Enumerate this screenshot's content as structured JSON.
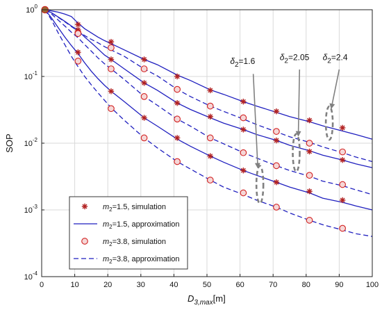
{
  "chart_data": {
    "type": "line",
    "ylabel": "SOP",
    "xlabel": {
      "base": "D",
      "sub": "3,max",
      "unit": "[m]"
    },
    "xlim": [
      0,
      100
    ],
    "ylim": [
      0.0001,
      1
    ],
    "yscale": "log",
    "grid": true,
    "x_ticks": [
      "0",
      "10",
      "20",
      "30",
      "40",
      "50",
      "60",
      "70",
      "80",
      "90",
      "100"
    ],
    "y_ticks": [
      {
        "base": "10",
        "exp": "-4",
        "value": 0.0001
      },
      {
        "base": "10",
        "exp": "-3",
        "value": 0.001
      },
      {
        "base": "10",
        "exp": "-2",
        "value": 0.01
      },
      {
        "base": "10",
        "exp": "-1",
        "value": 0.1
      },
      {
        "base": "10",
        "exp": "0",
        "value": 1
      }
    ],
    "legend_position": "bottom-left",
    "legend": [
      {
        "kind": "sim-m15",
        "prefix": "m",
        "sub": "2",
        "text": "=1.5, simulation"
      },
      {
        "kind": "approx-m15",
        "prefix": "m",
        "sub": "2",
        "text": "=1.5, approximation"
      },
      {
        "kind": "sim-m38",
        "prefix": "m",
        "sub": "2",
        "text": "=3.8, simulation"
      },
      {
        "kind": "approx-m38",
        "prefix": "m",
        "sub": "2",
        "text": "=3.8, approximation"
      }
    ],
    "annotations": [
      {
        "prefix": "δ",
        "sub": "2",
        "text": "=1.6"
      },
      {
        "prefix": "δ",
        "sub": "2",
        "text": "=2.05"
      },
      {
        "prefix": "δ",
        "sub": "2",
        "text": "=2.4"
      }
    ],
    "sim_x": [
      1,
      11,
      21,
      31,
      41,
      51,
      61,
      71,
      81,
      91
    ],
    "curve_x": [
      1,
      3,
      5,
      7,
      9,
      11,
      13,
      15,
      17,
      19,
      21,
      25,
      31,
      35,
      41,
      45,
      51,
      55,
      61,
      65,
      71,
      75,
      81,
      85,
      91,
      95,
      100
    ],
    "series": [
      {
        "group": "delta-2.4",
        "m2": "1.5",
        "sim": [
          1,
          0.6,
          0.33,
          0.18,
          0.1,
          0.062,
          0.042,
          0.03,
          0.022,
          0.017
        ],
        "approx": [
          1,
          0.96,
          0.92,
          0.86,
          0.79,
          0.63,
          0.52,
          0.45,
          0.39,
          0.345,
          0.31,
          0.25,
          0.18,
          0.15,
          0.105,
          0.087,
          0.063,
          0.054,
          0.042,
          0.036,
          0.029,
          0.025,
          0.021,
          0.0182,
          0.0152,
          0.0135,
          0.0115
        ]
      },
      {
        "group": "delta-2.4",
        "m2": "3.8",
        "sim": [
          1,
          0.45,
          0.27,
          0.13,
          0.064,
          0.036,
          0.024,
          0.015,
          0.01,
          0.0074
        ],
        "approx": [
          1,
          0.9,
          0.77,
          0.66,
          0.56,
          0.48,
          0.41,
          0.36,
          0.32,
          0.28,
          0.25,
          0.2,
          0.13,
          0.102,
          0.064,
          0.05,
          0.036,
          0.03,
          0.023,
          0.019,
          0.0148,
          0.0125,
          0.0103,
          0.0088,
          0.0072,
          0.0062,
          0.0053
        ]
      },
      {
        "group": "delta-2.05",
        "m2": "1.5",
        "sim": [
          1,
          0.5,
          0.18,
          0.08,
          0.04,
          0.025,
          0.016,
          0.011,
          0.0075,
          0.0056
        ],
        "approx": [
          1,
          0.9,
          0.78,
          0.67,
          0.57,
          0.49,
          0.39,
          0.32,
          0.26,
          0.21,
          0.18,
          0.13,
          0.08,
          0.062,
          0.04,
          0.032,
          0.024,
          0.02,
          0.016,
          0.0135,
          0.011,
          0.0093,
          0.0077,
          0.0066,
          0.0056,
          0.0049,
          0.0043
        ]
      },
      {
        "group": "delta-2.05",
        "m2": "3.8",
        "sim": [
          1,
          0.44,
          0.13,
          0.05,
          0.023,
          0.012,
          0.0072,
          0.0046,
          0.0033,
          0.0024
        ],
        "approx": [
          1,
          0.86,
          0.7,
          0.57,
          0.46,
          0.38,
          0.3,
          0.24,
          0.19,
          0.155,
          0.13,
          0.09,
          0.05,
          0.037,
          0.023,
          0.018,
          0.012,
          0.0098,
          0.0072,
          0.006,
          0.0046,
          0.0039,
          0.0032,
          0.0027,
          0.0023,
          0.002,
          0.0017
        ]
      },
      {
        "group": "delta-1.6",
        "m2": "1.5",
        "sim": [
          1,
          0.23,
          0.06,
          0.024,
          0.012,
          0.0064,
          0.0039,
          0.0026,
          0.0019,
          0.0014
        ],
        "approx": [
          1,
          0.75,
          0.54,
          0.39,
          0.29,
          0.22,
          0.16,
          0.12,
          0.093,
          0.074,
          0.06,
          0.042,
          0.024,
          0.018,
          0.0115,
          0.009,
          0.0064,
          0.0052,
          0.0039,
          0.0033,
          0.0026,
          0.0022,
          0.0018,
          0.0015,
          0.0013,
          0.00115,
          0.001
        ]
      },
      {
        "group": "delta-1.6",
        "m2": "3.8",
        "sim": [
          1,
          0.17,
          0.033,
          0.012,
          0.0053,
          0.0028,
          0.0018,
          0.0011,
          0.0007,
          0.00053
        ],
        "approx": [
          1,
          0.7,
          0.45,
          0.3,
          0.2,
          0.14,
          0.1,
          0.075,
          0.057,
          0.044,
          0.034,
          0.022,
          0.012,
          0.0085,
          0.0053,
          0.0041,
          0.0028,
          0.0022,
          0.0017,
          0.0014,
          0.0011,
          0.0009,
          0.0007,
          0.0006,
          0.0005,
          0.00044,
          0.0004
        ]
      }
    ],
    "colors": {
      "line": "#1f1fbf",
      "sim_star": "#b22222",
      "sim_circle": "#d22020",
      "circle_fill": "#f5d7d7",
      "grid": "#d9d9d9",
      "ellipse": "#808080",
      "arrow": "#808080",
      "start_marker": "#996633"
    }
  }
}
